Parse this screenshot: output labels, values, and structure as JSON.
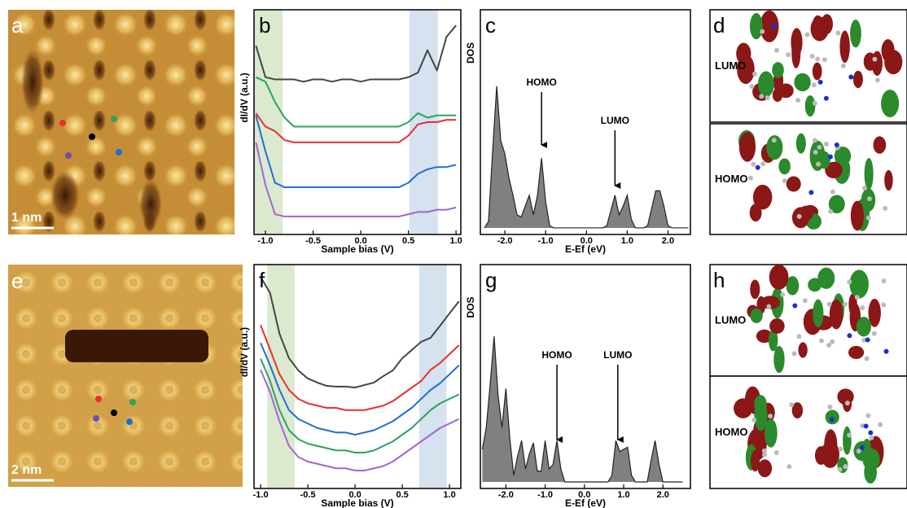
{
  "images": [
    {
      "label": "a",
      "scale_bar": "1 nm"
    },
    {
      "label": "e",
      "scale_bar": "2 nm"
    }
  ],
  "orbitals": [
    {
      "label": "d",
      "levels": [
        "LUMO",
        "HOMO"
      ]
    },
    {
      "label": "h",
      "levels": [
        "LUMO",
        "HOMO"
      ]
    }
  ],
  "chart_data": [
    {
      "type": "line",
      "label": "b",
      "xlabel": "Sample bias (V)",
      "ylabel": "dI/dV (a.u.)",
      "x": [
        -1.1,
        -1.0,
        -0.9,
        -0.8,
        -0.7,
        -0.6,
        -0.5,
        -0.4,
        -0.3,
        -0.2,
        -0.1,
        0,
        0.1,
        0.2,
        0.3,
        0.4,
        0.5,
        0.6,
        0.7,
        0.8,
        0.9,
        1.0
      ],
      "xlim": [
        -1.12,
        1.05
      ],
      "ylim": [
        0,
        10
      ],
      "xticks": [
        {
          "value": -1.0,
          "label": "-1.0"
        },
        -0.5,
        {
          "value": 0,
          "label": "0.0"
        },
        0.5,
        {
          "value": 1.0,
          "label": "1.0"
        }
      ],
      "highlights": [
        {
          "range": [
            -1.12,
            -0.82
          ],
          "color": "#dbe9cf"
        },
        {
          "range": [
            0.51,
            0.81
          ],
          "color": "#d5e2ef"
        }
      ],
      "series": [
        {
          "color": "#444444",
          "values": [
            8.4,
            7.0,
            6.9,
            6.9,
            6.9,
            6.8,
            6.9,
            6.9,
            6.8,
            6.9,
            6.9,
            6.8,
            6.9,
            6.9,
            6.9,
            6.9,
            7.0,
            7.2,
            8.2,
            7.3,
            8.8,
            9.3
          ]
        },
        {
          "color": "#2ca25f",
          "values": [
            7.0,
            6.8,
            5.9,
            5.2,
            4.8,
            4.8,
            4.8,
            4.8,
            4.8,
            4.8,
            4.8,
            4.8,
            4.8,
            4.8,
            4.8,
            4.8,
            5.0,
            5.4,
            5.2,
            5.3,
            5.3,
            5.3
          ]
        },
        {
          "color": "#e8302e",
          "values": [
            5.4,
            4.8,
            4.6,
            4.2,
            4.1,
            4.1,
            4.1,
            4.1,
            4.1,
            4.1,
            4.1,
            4.1,
            4.1,
            4.1,
            4.1,
            4.1,
            4.4,
            4.9,
            5.0,
            5.0,
            5.1,
            5.1
          ]
        },
        {
          "color": "#1f6fd1",
          "values": [
            5.3,
            3.7,
            2.3,
            2.1,
            2.1,
            2.1,
            2.1,
            2.1,
            2.1,
            2.1,
            2.1,
            2.1,
            2.1,
            2.1,
            2.1,
            2.1,
            2.3,
            2.7,
            2.9,
            3.0,
            3.0,
            3.1
          ]
        },
        {
          "color": "#a066d3",
          "values": [
            4.1,
            2.2,
            0.9,
            0.8,
            0.8,
            0.8,
            0.8,
            0.8,
            0.8,
            0.8,
            0.8,
            0.8,
            0.8,
            0.8,
            0.8,
            0.8,
            0.9,
            1.0,
            1.0,
            1.1,
            1.1,
            1.2
          ]
        }
      ]
    },
    {
      "type": "area",
      "label": "c",
      "xlabel": "E-Ef (eV)",
      "ylabel": "DOS",
      "color": "#808080",
      "x": [
        -2.5,
        -2.4,
        -2.3,
        -2.2,
        -2.1,
        -2.0,
        -1.9,
        -1.8,
        -1.7,
        -1.6,
        -1.5,
        -1.4,
        -1.3,
        -1.2,
        -1.1,
        -1.0,
        -0.9,
        -0.8,
        -0.7,
        -0.6,
        -0.5,
        -0.4,
        -0.3,
        -0.2,
        -0.1,
        0,
        0.1,
        0.2,
        0.3,
        0.4,
        0.5,
        0.6,
        0.7,
        0.8,
        0.9,
        1.0,
        1.1,
        1.2,
        1.3,
        1.4,
        1.5,
        1.6,
        1.7,
        1.8,
        1.9,
        2.0,
        2.1,
        2.2,
        2.3,
        2.4,
        2.5
      ],
      "values": [
        0,
        0.3,
        3.5,
        6.5,
        4.0,
        3.4,
        2.3,
        1.5,
        0.6,
        0.5,
        1.0,
        1.5,
        0.6,
        1.5,
        3.2,
        1.2,
        0.1,
        0,
        0,
        0,
        0,
        0,
        0,
        0,
        0,
        0,
        0,
        0,
        0,
        0,
        0.1,
        0.8,
        1.5,
        0.6,
        1.0,
        1.5,
        0.4,
        0,
        0,
        0,
        0.1,
        0.9,
        1.7,
        1.7,
        1.0,
        0.1,
        0,
        0,
        0,
        0,
        0
      ],
      "xlim": [
        -2.6,
        2.55
      ],
      "ylim": [
        -0.3,
        10
      ],
      "xticks": [
        {
          "value": -2.0,
          "label": "-2.0"
        },
        {
          "value": -1.0,
          "label": "-1.0"
        },
        {
          "value": 0,
          "label": "0.0"
        },
        {
          "value": 1.0,
          "label": "1.0"
        },
        {
          "value": 2.0,
          "label": "2.0"
        }
      ],
      "annotations": [
        {
          "text": "HOMO",
          "x": -1.1
        },
        {
          "text": "LUMO",
          "x": 0.7
        }
      ]
    },
    {
      "type": "line",
      "label": "f",
      "xlabel": "Sample bias (V)",
      "ylabel": "dI/dV (a.u.)",
      "x": [
        -1.0,
        -0.9,
        -0.8,
        -0.7,
        -0.6,
        -0.5,
        -0.4,
        -0.3,
        -0.2,
        -0.1,
        0,
        0.1,
        0.2,
        0.3,
        0.4,
        0.5,
        0.6,
        0.7,
        0.8,
        0.9,
        1.0,
        1.1
      ],
      "xlim": [
        -1.07,
        1.12
      ],
      "ylim": [
        0,
        10
      ],
      "xticks": [
        {
          "value": -1.0,
          "label": "-1.0"
        },
        -0.5,
        {
          "value": 0,
          "label": "0.0"
        },
        0.5,
        {
          "value": 1.0,
          "label": "1.0"
        }
      ],
      "highlights": [
        {
          "range": [
            -0.93,
            -0.64
          ],
          "color": "#dbe9cf"
        },
        {
          "range": [
            0.68,
            0.97
          ],
          "color": "#d5e2ef"
        }
      ],
      "series": [
        {
          "color": "#444444",
          "values": [
            9.45,
            8.73,
            6.91,
            5.82,
            5.27,
            4.91,
            4.73,
            4.58,
            4.55,
            4.55,
            4.51,
            4.62,
            4.73,
            5.02,
            5.27,
            5.82,
            6.18,
            6.55,
            6.73,
            7.27,
            7.82,
            8.36
          ]
        },
        {
          "color": "#e8302e",
          "values": [
            7.3,
            6.2,
            5.1,
            4.4,
            4.0,
            3.8,
            3.7,
            3.6,
            3.6,
            3.5,
            3.5,
            3.5,
            3.6,
            3.7,
            3.9,
            4.2,
            4.5,
            4.8,
            5.3,
            5.6,
            6.0,
            6.4
          ]
        },
        {
          "color": "#1f6fd1",
          "values": [
            6.5,
            5.5,
            4.4,
            3.5,
            3.1,
            2.9,
            2.7,
            2.6,
            2.5,
            2.5,
            2.4,
            2.5,
            2.6,
            2.8,
            3.0,
            3.3,
            3.6,
            4.0,
            4.4,
            4.7,
            5.1,
            5.5
          ]
        },
        {
          "color": "#2ca25f",
          "values": [
            5.8,
            4.8,
            3.5,
            2.6,
            2.2,
            2.0,
            1.9,
            1.8,
            1.7,
            1.7,
            1.6,
            1.6,
            1.7,
            1.9,
            2.1,
            2.4,
            2.7,
            3.1,
            3.5,
            3.8,
            4.0,
            4.2
          ]
        },
        {
          "color": "#a066d3",
          "values": [
            5.3,
            4.3,
            3.0,
            1.9,
            1.4,
            1.2,
            1.1,
            1.0,
            0.9,
            0.9,
            0.8,
            0.8,
            0.9,
            1.0,
            1.2,
            1.5,
            1.8,
            2.1,
            2.4,
            2.7,
            2.9,
            3.1
          ]
        }
      ]
    },
    {
      "type": "area",
      "label": "g",
      "xlabel": "E-Ef (eV)",
      "ylabel": "DOS",
      "color": "#808080",
      "x": [
        -2.6,
        -2.5,
        -2.4,
        -2.3,
        -2.2,
        -2.1,
        -2.0,
        -1.9,
        -1.8,
        -1.7,
        -1.6,
        -1.5,
        -1.4,
        -1.3,
        -1.2,
        -1.1,
        -1.0,
        -0.9,
        -0.8,
        -0.7,
        -0.6,
        -0.5,
        -0.4,
        -0.3,
        -0.2,
        -0.1,
        0,
        0.1,
        0.2,
        0.3,
        0.4,
        0.5,
        0.6,
        0.7,
        0.8,
        0.9,
        1.0,
        1.1,
        1.2,
        1.3,
        1.4,
        1.5,
        1.6,
        1.7,
        1.8,
        1.9,
        2.0,
        2.1,
        2.2,
        2.3,
        2.4,
        2.5
      ],
      "values": [
        1.5,
        2.5,
        4.5,
        6.7,
        4.0,
        2.5,
        4.3,
        2.0,
        0.3,
        1.2,
        1.9,
        0.6,
        1.3,
        1.8,
        0.5,
        0.5,
        1.9,
        0.6,
        0.8,
        1.9,
        0.6,
        0,
        0,
        0,
        0,
        0,
        0,
        0,
        0,
        0,
        0,
        0,
        0,
        0.3,
        1.9,
        1.4,
        1.5,
        1.6,
        0.3,
        0,
        0,
        0,
        0,
        1.0,
        1.9,
        0.8,
        0,
        0,
        0,
        0,
        0,
        0
      ],
      "xlim": [
        -2.65,
        2.7
      ],
      "ylim": [
        -0.3,
        10
      ],
      "xticks": [
        {
          "value": -2.0,
          "label": "-2.0"
        },
        {
          "value": -1.0,
          "label": "-1.0"
        },
        {
          "value": 0,
          "label": "0.0"
        },
        {
          "value": 1.0,
          "label": "1.0"
        },
        {
          "value": 2.0,
          "label": "2.0"
        }
      ],
      "annotations": [
        {
          "text": "HOMO",
          "x": -0.7
        },
        {
          "text": "LUMO",
          "x": 0.85
        }
      ]
    }
  ]
}
